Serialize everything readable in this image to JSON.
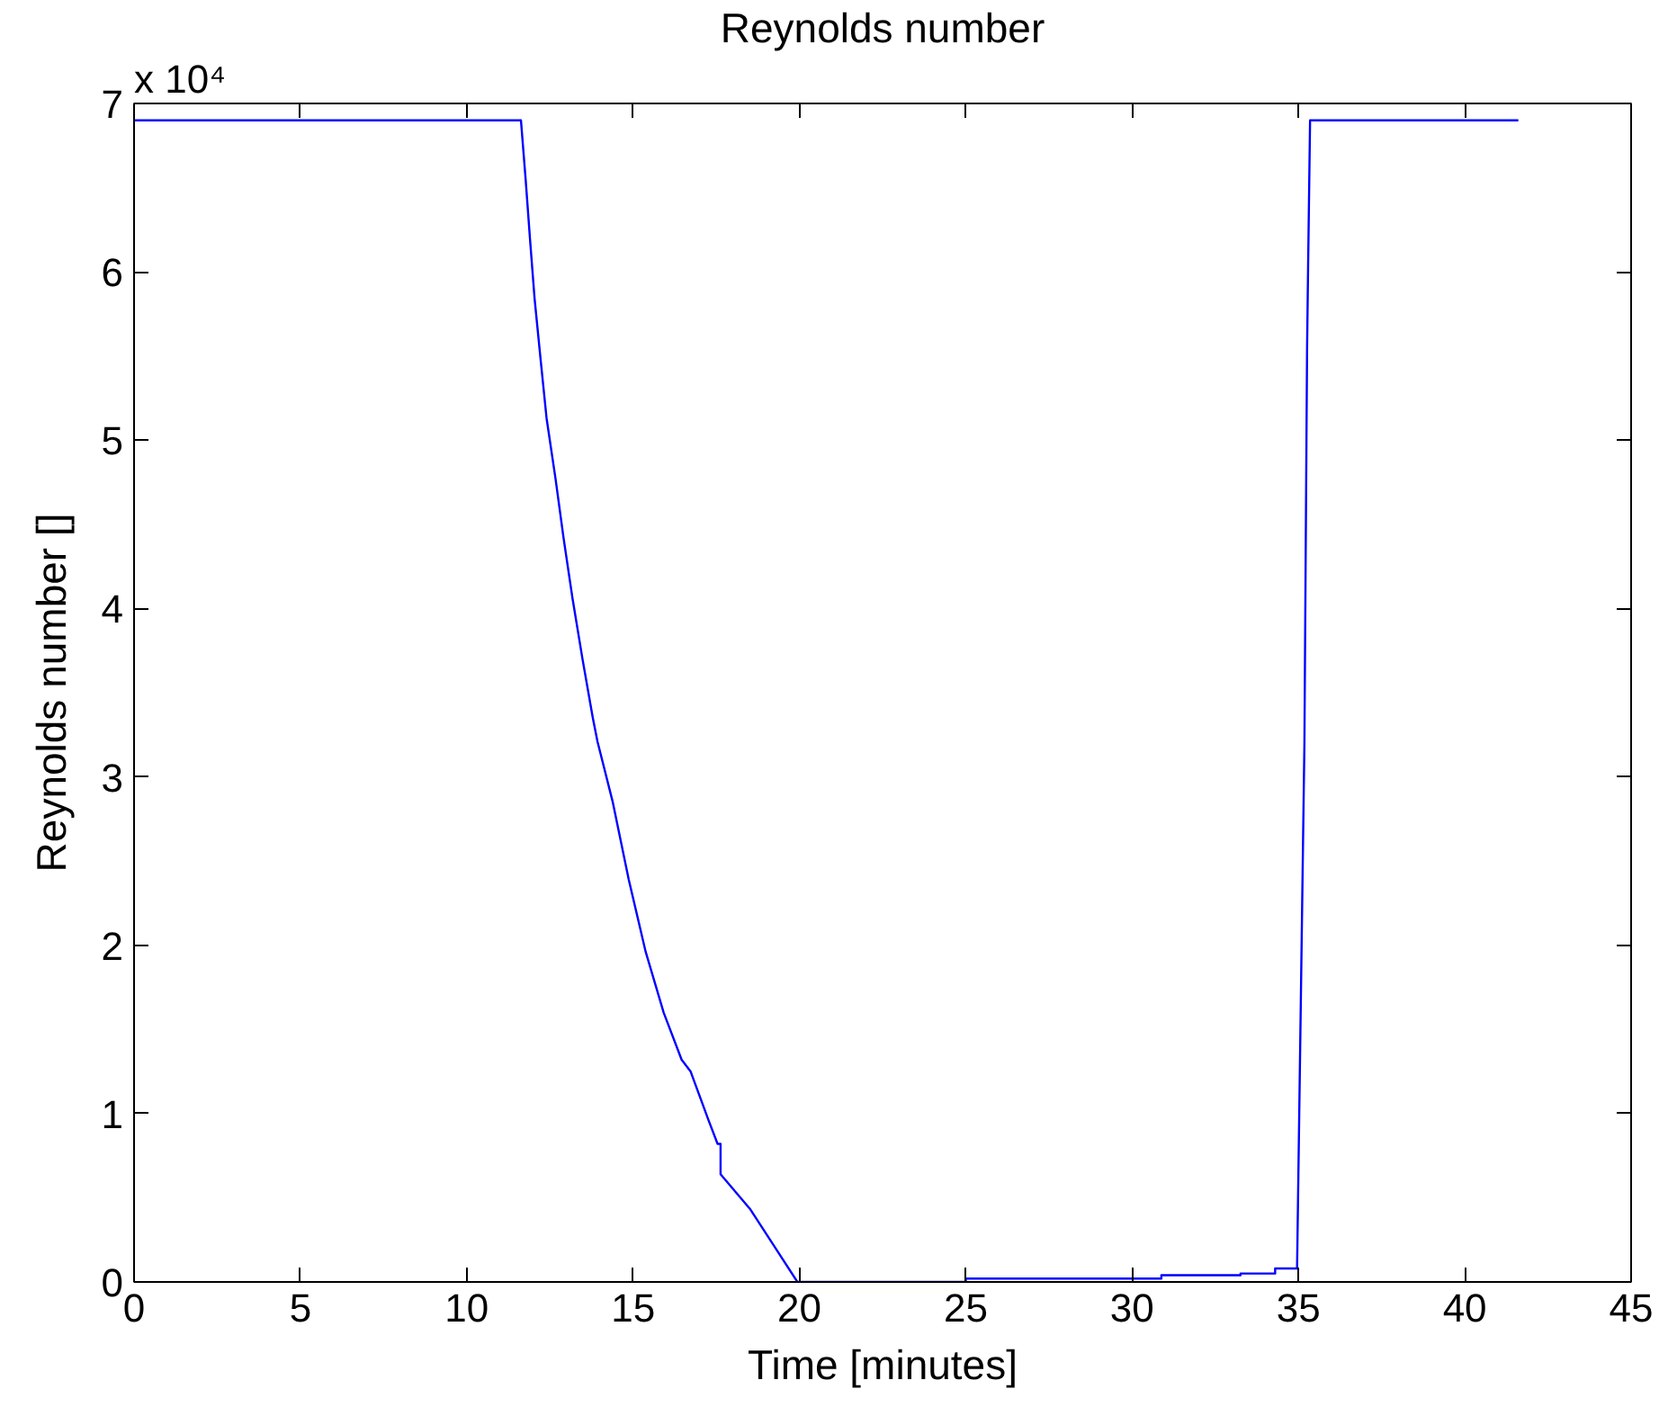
{
  "chart_data": {
    "type": "line",
    "title": "Reynolds number",
    "xlabel": "Time [minutes]",
    "ylabel": "Reynolds number []",
    "annotations": [
      "x 10⁴"
    ],
    "xlim": [
      0,
      45
    ],
    "ylim": [
      0,
      7
    ],
    "xticks": [
      0,
      5,
      10,
      15,
      20,
      25,
      30,
      35,
      40,
      45
    ],
    "yticks": [
      0,
      1,
      2,
      3,
      4,
      5,
      6,
      7
    ],
    "series": [
      {
        "color": "#0000ff",
        "x": [
          0,
          11.63,
          11.77,
          11.9,
          12.04,
          12.22,
          12.4,
          12.67,
          12.91,
          13.18,
          13.48,
          13.79,
          13.93,
          14.39,
          14.87,
          15.38,
          15.92,
          16.46,
          16.73,
          17.27,
          17.54,
          17.63,
          17.63,
          18.53,
          19.25,
          19.94,
          25.0,
          25.0,
          30.88,
          30.88,
          33.26,
          33.26,
          34.3,
          34.3,
          34.96,
          34.96,
          35.07,
          35.18,
          35.26,
          35.29,
          35.35,
          41.61
        ],
        "values": [
          6.9,
          6.9,
          6.55,
          6.2,
          5.84,
          5.48,
          5.13,
          4.77,
          4.42,
          4.06,
          3.7,
          3.35,
          3.21,
          2.85,
          2.39,
          1.96,
          1.6,
          1.32,
          1.25,
          0.96,
          0.82,
          0.82,
          0.64,
          0.43,
          0.21,
          0,
          0,
          0.02,
          0.02,
          0.04,
          0.04,
          0.05,
          0.05,
          0.08,
          0.08,
          0.1,
          1.64,
          3.2,
          5.55,
          6.02,
          6.9,
          6.9
        ]
      }
    ]
  }
}
